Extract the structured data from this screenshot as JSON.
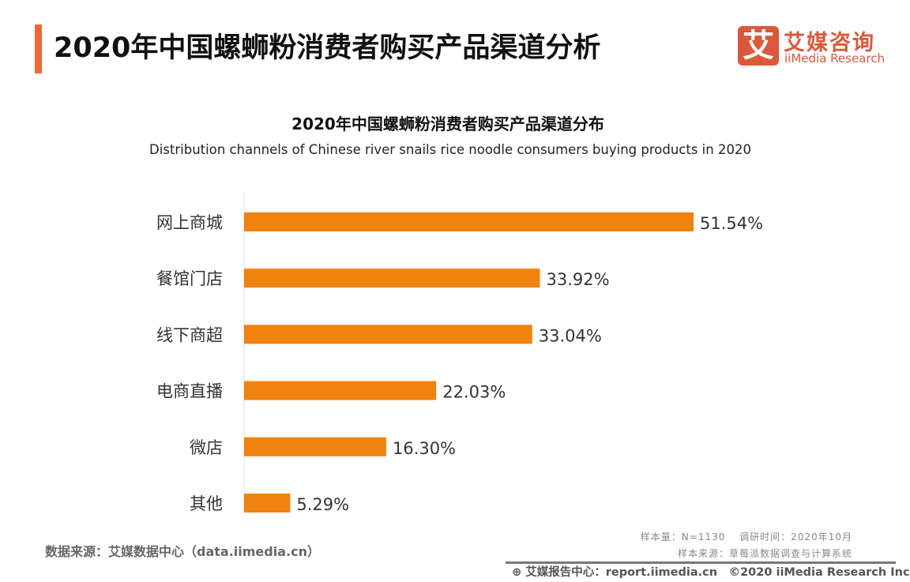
{
  "header": {
    "title": "2020年中国螺蛳粉消费者购买产品渠道分析",
    "accent_color": "#ea6a33"
  },
  "logo": {
    "mark": "艾",
    "cn": "艾媒咨询",
    "en": "iiMedia Research",
    "color": "#d9593a"
  },
  "chart_data": {
    "type": "bar",
    "orientation": "horizontal",
    "title": "2020年中国螺蛳粉消费者购买产品渠道分布",
    "subtitle": "Distribution channels of Chinese river snails rice noodle consumers buying products in 2020",
    "categories": [
      "网上商城",
      "餐馆门店",
      "线下商超",
      "电商直播",
      "微店",
      "其他"
    ],
    "values": [
      51.54,
      33.92,
      33.04,
      22.03,
      16.3,
      5.29
    ],
    "labels": [
      "51.54%",
      "33.92%",
      "33.04%",
      "22.03%",
      "16.30%",
      "5.29%"
    ],
    "unit": "%",
    "bar_color": "#f0820f",
    "grid": false
  },
  "footer": {
    "source": "数据来源：艾媒数据中心（data.iimedia.cn）",
    "sample": "样本量：N=1130　 调研时间：2020年10月",
    "sample_source": "样本来源：草莓派数据调查与计算系统",
    "report": "艾媒报告中心：report.iimedia.cn　©2020  iiMedia Research  Inc"
  }
}
